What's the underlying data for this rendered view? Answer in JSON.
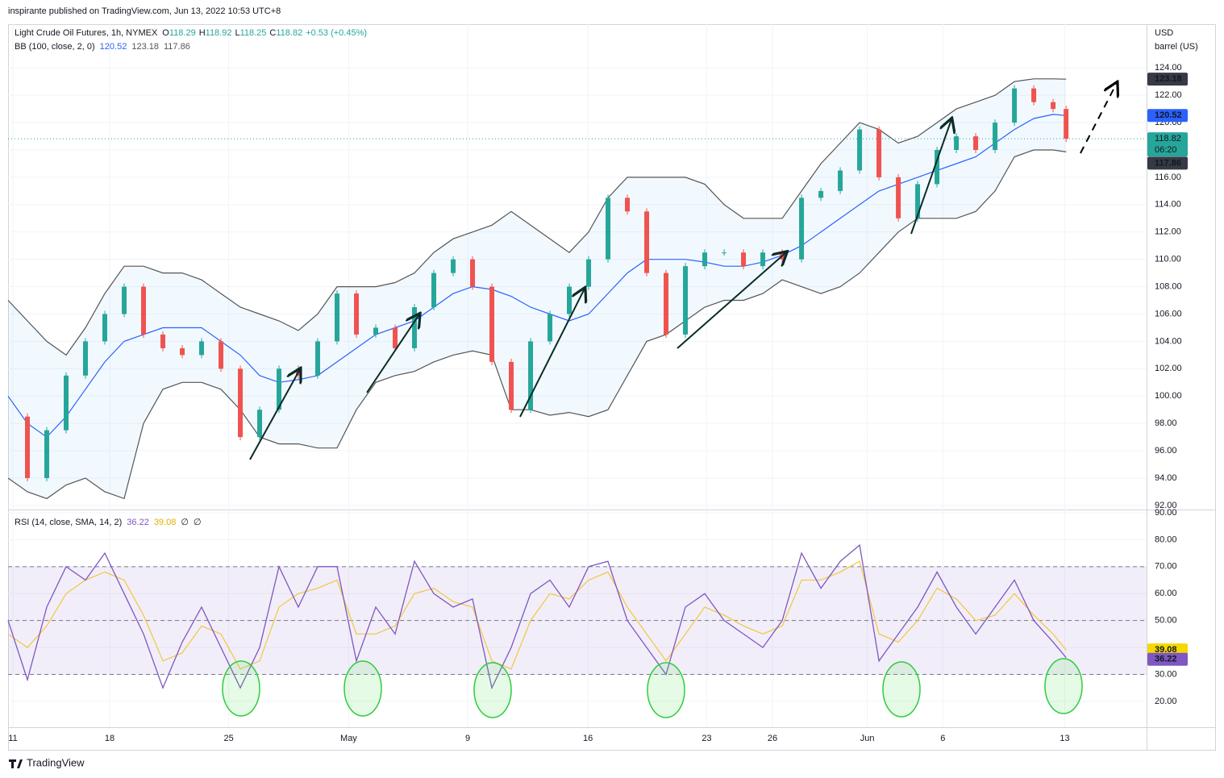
{
  "header": {
    "text": "inspirante published on TradingView.com, Jun 13, 2022 10:53 UTC+8"
  },
  "footer": {
    "brand": "TradingView"
  },
  "chart_data": [
    {
      "type": "candlestick",
      "title": "Light Crude Oil Futures, 1h, NYMEX",
      "ohlc": [
        {
          "label": "O",
          "value": 118.29
        },
        {
          "label": "H",
          "value": 118.92
        },
        {
          "label": "L",
          "value": 118.25
        },
        {
          "label": "C",
          "value": 118.82
        }
      ],
      "change": "+0.53 (+0.45%)",
      "currency": "USD",
      "unit": "barrel (US)",
      "countdown": "06:20",
      "up_color": "#26a69a",
      "down_color": "#ef5350",
      "x": [
        0,
        1,
        2,
        3,
        4,
        5,
        6,
        7,
        8,
        9,
        10,
        11,
        12,
        13,
        14,
        15,
        16,
        17,
        18,
        19,
        20,
        21,
        22,
        23,
        24,
        25,
        26,
        27,
        28,
        29,
        30,
        31,
        32,
        33,
        34,
        35,
        36,
        37,
        38,
        39,
        40,
        41,
        42,
        43,
        44,
        45,
        46,
        47,
        48,
        49,
        50,
        51,
        52,
        53,
        54,
        54.67
      ],
      "close": [
        98.5,
        94,
        97.5,
        101.5,
        104,
        106,
        108,
        104.5,
        103.5,
        103,
        104,
        102,
        97,
        99,
        102,
        101.5,
        104,
        107.5,
        104.5,
        105,
        103.5,
        106.5,
        109,
        110,
        108,
        102.5,
        99,
        104,
        106,
        108,
        110,
        114.5,
        113.5,
        109,
        104.5,
        109.5,
        110.5,
        110.5,
        109.5,
        110.5,
        110,
        114.5,
        115,
        116.5,
        119.5,
        116,
        113,
        115.5,
        118,
        119,
        118,
        120,
        122.5,
        121.5,
        121,
        118.82
      ],
      "bb": {
        "name": "BB (100, close, 2, 0)",
        "basis_color": "#2962ff",
        "band_color": "#555555",
        "basis": [
          100,
          98,
          97,
          98.5,
          100.5,
          102.5,
          104,
          104.5,
          105,
          105,
          105,
          104,
          103,
          101.5,
          101,
          101.2,
          101.5,
          102.5,
          103.5,
          104.5,
          105,
          105.5,
          106.5,
          107.5,
          108,
          107.8,
          107.3,
          106.5,
          106,
          105.5,
          106,
          107.5,
          109,
          110,
          110,
          110,
          109.8,
          109.5,
          109.5,
          109.8,
          110.3,
          111,
          112,
          113,
          114,
          115,
          115.5,
          116,
          116.5,
          117,
          117.5,
          118.5,
          119.5,
          120.3,
          120.6,
          120.52
        ],
        "upper": [
          107,
          105.5,
          104,
          103,
          105,
          107.5,
          109.5,
          109.5,
          109,
          109,
          108.5,
          107.5,
          106.5,
          106,
          105.5,
          104.8,
          106,
          108,
          108,
          108,
          108.3,
          109,
          110.5,
          111.5,
          112,
          112.5,
          113.5,
          112.5,
          111.5,
          110.5,
          112,
          114.5,
          116,
          116,
          116,
          116,
          115.5,
          114,
          113,
          113,
          113,
          115,
          117,
          118.5,
          120,
          119.5,
          118.5,
          119,
          120,
          121,
          121.5,
          122,
          123,
          123.2,
          123.2,
          123.18
        ],
        "lower": [
          94,
          93,
          92.5,
          93.5,
          94,
          93,
          92.5,
          98,
          100.5,
          101,
          101,
          100.5,
          99,
          97,
          96.5,
          96.5,
          96.2,
          96.2,
          99,
          101,
          101.5,
          101.8,
          102.5,
          103,
          103.3,
          103,
          99,
          99,
          98.6,
          98.8,
          98.5,
          99,
          101.5,
          104,
          104.5,
          105.5,
          106.5,
          107,
          107,
          107.5,
          108.5,
          108,
          107.5,
          108,
          109,
          110.5,
          112,
          113,
          113,
          113,
          113.5,
          115,
          117.5,
          118,
          118,
          117.86
        ]
      },
      "xlim": [
        0,
        58.83
      ],
      "ylim": [
        91.7,
        127.2
      ],
      "yticks": [
        {
          "value": 92,
          "label": "92.00"
        },
        {
          "value": 94,
          "label": "94.00"
        },
        {
          "value": 96,
          "label": "96.00"
        },
        {
          "value": 98,
          "label": "98.00"
        },
        {
          "value": 100,
          "label": "100.00"
        },
        {
          "value": 102,
          "label": "102.00"
        },
        {
          "value": 104,
          "label": "104.00"
        },
        {
          "value": 106,
          "label": "106.00"
        },
        {
          "value": 108,
          "label": "108.00"
        },
        {
          "value": 110,
          "label": "110.00"
        },
        {
          "value": 112,
          "label": "112.00"
        },
        {
          "value": 114,
          "label": "114.00"
        },
        {
          "value": 116,
          "label": "116.00"
        },
        {
          "value": 118,
          "label": "118.00"
        },
        {
          "value": 120,
          "label": "120.00"
        },
        {
          "value": 122,
          "label": "122.00"
        },
        {
          "value": 124,
          "label": "124.00"
        }
      ],
      "grid": true
    },
    {
      "type": "line",
      "title": "RSI (14, close, SMA, 14, 2)",
      "extra": [
        "∅",
        "∅"
      ],
      "rsi_color": "#7e57c2",
      "sma_color": "#f2c94c",
      "x": [
        0,
        1,
        2,
        3,
        4,
        5,
        6,
        7,
        8,
        9,
        10,
        11,
        12,
        13,
        14,
        15,
        16,
        17,
        18,
        19,
        20,
        21,
        22,
        23,
        24,
        25,
        26,
        27,
        28,
        29,
        30,
        31,
        32,
        33,
        34,
        35,
        36,
        37,
        38,
        39,
        40,
        41,
        42,
        43,
        44,
        45,
        46,
        47,
        48,
        49,
        50,
        51,
        52,
        53,
        54,
        54.67
      ],
      "rsi": [
        50,
        28,
        55,
        70,
        65,
        75,
        60,
        45,
        25,
        42,
        55,
        40,
        25,
        40,
        70,
        55,
        70,
        70,
        35,
        55,
        45,
        72,
        60,
        55,
        58,
        25,
        40,
        60,
        65,
        55,
        70,
        72,
        50,
        40,
        30,
        55,
        60,
        50,
        45,
        40,
        50,
        75,
        62,
        72,
        78,
        35,
        45,
        55,
        68,
        55,
        45,
        55,
        65,
        50,
        42,
        36.22
      ],
      "sma": [
        45,
        40,
        48,
        60,
        65,
        68,
        65,
        52,
        35,
        38,
        48,
        45,
        32,
        35,
        55,
        60,
        62,
        65,
        45,
        45,
        48,
        60,
        62,
        57,
        55,
        35,
        32,
        50,
        60,
        58,
        65,
        68,
        55,
        45,
        35,
        45,
        55,
        52,
        48,
        45,
        48,
        65,
        65,
        68,
        72,
        45,
        42,
        50,
        62,
        58,
        50,
        52,
        60,
        52,
        45,
        39.08
      ],
      "levels": [
        30,
        50,
        70
      ],
      "xlim": [
        0,
        58.83
      ],
      "ylim": [
        10.4,
        91.2
      ],
      "yticks": [
        {
          "value": 20,
          "label": "20.00"
        },
        {
          "value": 30,
          "label": "30.00"
        },
        {
          "value": 40,
          "label": "40.00"
        },
        {
          "value": 50,
          "label": "50.00"
        },
        {
          "value": 60,
          "label": "60.00"
        },
        {
          "value": 70,
          "label": "70.00"
        },
        {
          "value": 80,
          "label": "80.00"
        },
        {
          "value": 90,
          "label": "90.00"
        }
      ],
      "xticks": [
        {
          "value": 0.25,
          "label": "11"
        },
        {
          "value": 5.25,
          "label": "18"
        },
        {
          "value": 11.4,
          "label": "25"
        },
        {
          "value": 17.6,
          "label": "May"
        },
        {
          "value": 23.75,
          "label": "9"
        },
        {
          "value": 29.96,
          "label": "16"
        },
        {
          "value": 36.1,
          "label": "23"
        },
        {
          "value": 39.5,
          "label": "26"
        },
        {
          "value": 44.4,
          "label": "Jun"
        },
        {
          "value": 48.3,
          "label": "6"
        },
        {
          "value": 54.6,
          "label": "13"
        }
      ],
      "grid": true
    }
  ]
}
